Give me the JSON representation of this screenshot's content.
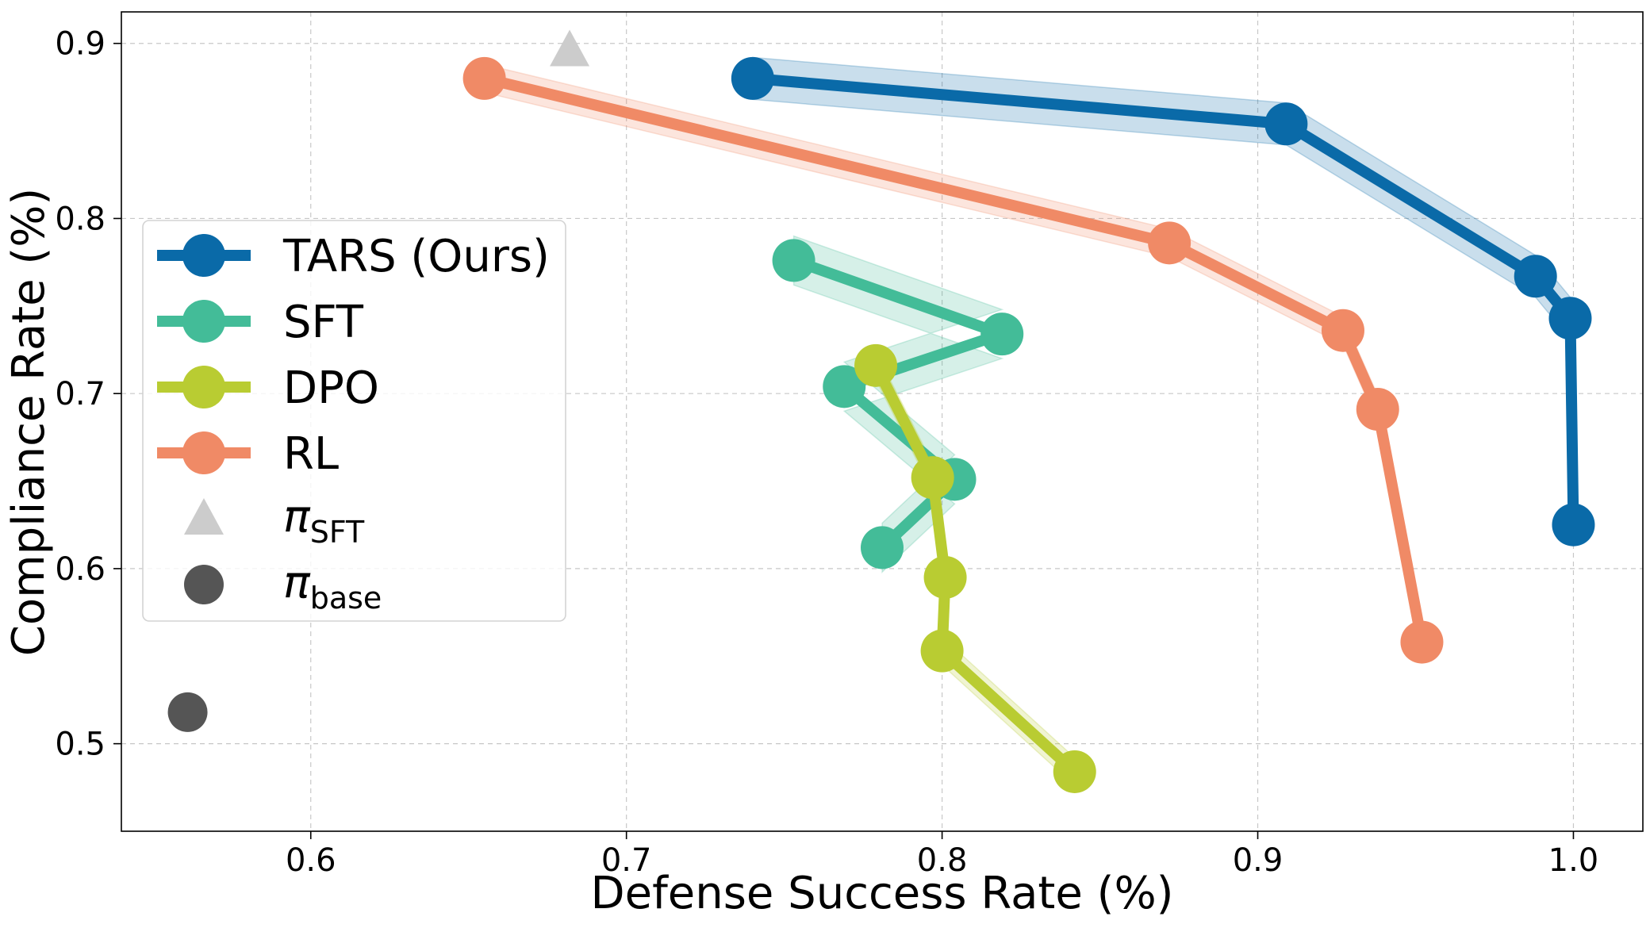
{
  "chart_data": {
    "type": "line",
    "title": "",
    "xlabel": "Defense Success Rate (%)",
    "ylabel": "Compliance Rate (%)",
    "xlim": [
      0.54,
      1.022
    ],
    "ylim": [
      0.45,
      0.918
    ],
    "xticks": [
      0.6,
      0.7,
      0.8,
      0.9,
      1.0
    ],
    "yticks": [
      0.5,
      0.6,
      0.7,
      0.8,
      0.9
    ],
    "xtick_labels": [
      "0.6",
      "0.7",
      "0.8",
      "0.9",
      "1.0"
    ],
    "ytick_labels": [
      "0.5",
      "0.6",
      "0.7",
      "0.8",
      "0.9"
    ],
    "grid": true,
    "legend_position": "center-left",
    "series": [
      {
        "name": "TARS (Ours)",
        "color": "#0a6aa8",
        "x": [
          0.74,
          0.909,
          0.988,
          0.999,
          1.0
        ],
        "y": [
          0.88,
          0.854,
          0.767,
          0.743,
          0.625
        ],
        "band": 0.012
      },
      {
        "name": "SFT",
        "color": "#43bc98",
        "x": [
          0.753,
          0.819,
          0.769,
          0.804,
          0.781
        ],
        "y": [
          0.776,
          0.734,
          0.704,
          0.651,
          0.612
        ],
        "band": 0.014
      },
      {
        "name": "DPO",
        "color": "#b9cc32",
        "x": [
          0.779,
          0.797,
          0.801,
          0.8,
          0.842
        ],
        "y": [
          0.716,
          0.652,
          0.595,
          0.553,
          0.484
        ],
        "band": 0.008
      },
      {
        "name": "RL",
        "color": "#f08a66",
        "x": [
          0.655,
          0.872,
          0.927,
          0.938,
          0.952
        ],
        "y": [
          0.88,
          0.786,
          0.736,
          0.691,
          0.558
        ],
        "band": 0.008
      }
    ],
    "markers": [
      {
        "name": "π",
        "subscript": "SFT",
        "shape": "triangle",
        "color": "#cccccc",
        "x": 0.682,
        "y": 0.896
      },
      {
        "name": "π",
        "subscript": "base",
        "shape": "circle",
        "color": "#555555",
        "x": 0.561,
        "y": 0.518
      }
    ]
  }
}
